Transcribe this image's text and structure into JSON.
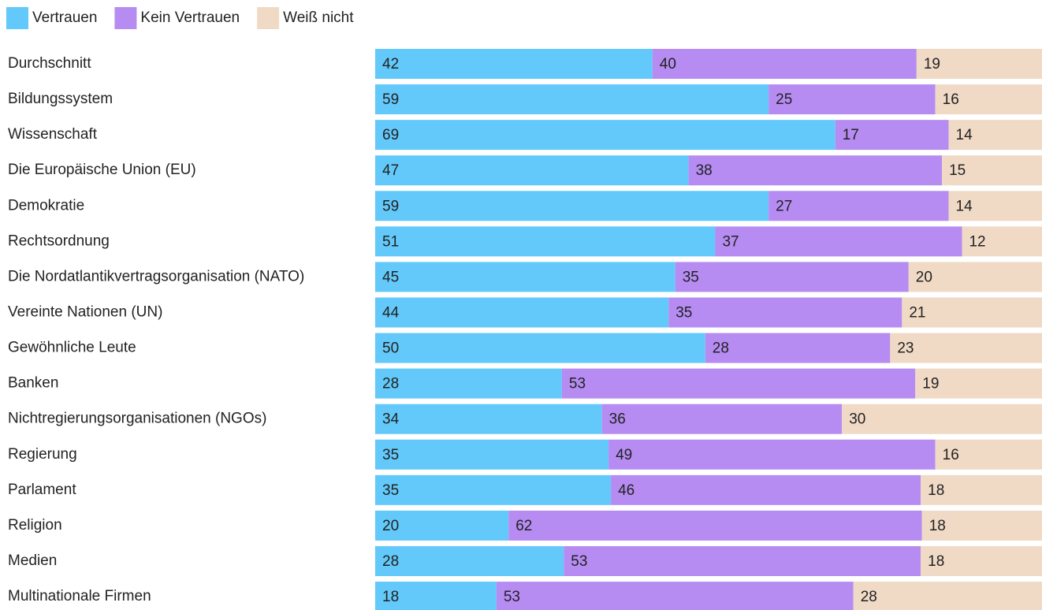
{
  "chart_data": {
    "type": "stacked-bar-horizontal",
    "categories": [
      "Durchschnitt",
      "Bildungssystem",
      "Wissenschaft",
      "Die Europäische Union (EU)",
      "Demokratie",
      "Rechtsordnung",
      "Die Nordatlantikvertragsorganisation (NATO)",
      "Vereinte Nationen (UN)",
      "Gewöhnliche Leute",
      "Banken",
      "Nichtregierungsorganisationen (NGOs)",
      "Regierung",
      "Parlament",
      "Religion",
      "Medien",
      "Multinationale Firmen"
    ],
    "series": [
      {
        "name": "Vertrauen",
        "color": "#62c9fa",
        "values": [
          42,
          59,
          69,
          47,
          59,
          51,
          45,
          44,
          50,
          28,
          34,
          35,
          35,
          20,
          28,
          18
        ]
      },
      {
        "name": "Kein Vertrauen",
        "color": "#b68cf2",
        "values": [
          40,
          25,
          17,
          38,
          27,
          37,
          35,
          35,
          28,
          53,
          36,
          49,
          46,
          62,
          53,
          53
        ]
      },
      {
        "name": "Weiß nicht",
        "color": "#f0dac6",
        "values": [
          19,
          16,
          14,
          15,
          14,
          12,
          20,
          21,
          23,
          19,
          30,
          16,
          18,
          18,
          18,
          28
        ]
      }
    ],
    "legend": "top-left"
  }
}
